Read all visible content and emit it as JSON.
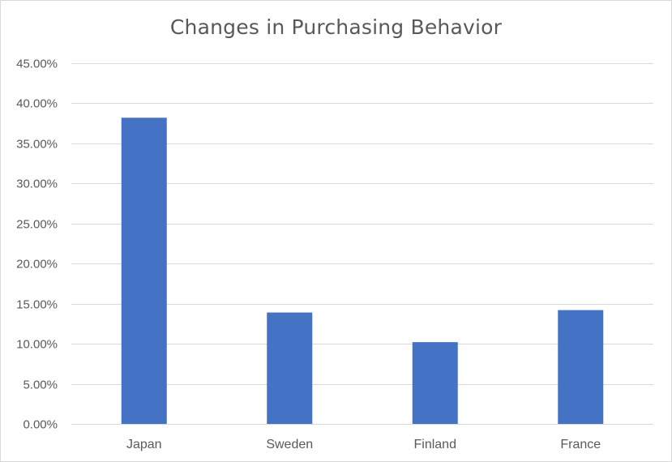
{
  "chart_data": {
    "type": "bar",
    "title": "Changes in Purchasing Behavior",
    "categories": [
      "Japan",
      "Sweden",
      "Finland",
      "France"
    ],
    "values": [
      0.382,
      0.139,
      0.102,
      0.142
    ],
    "ylim": [
      0,
      0.45
    ],
    "yticks": [
      0,
      0.05,
      0.1,
      0.15,
      0.2,
      0.25,
      0.3,
      0.35,
      0.4,
      0.45
    ],
    "ytick_labels": [
      "0.00%",
      "5.00%",
      "10.00%",
      "15.00%",
      "20.00%",
      "25.00%",
      "30.00%",
      "35.00%",
      "40.00%",
      "45.00%"
    ],
    "grid": true,
    "legend": "none",
    "bar_color": "#4472c4",
    "grid_color": "#d9d9d9"
  }
}
